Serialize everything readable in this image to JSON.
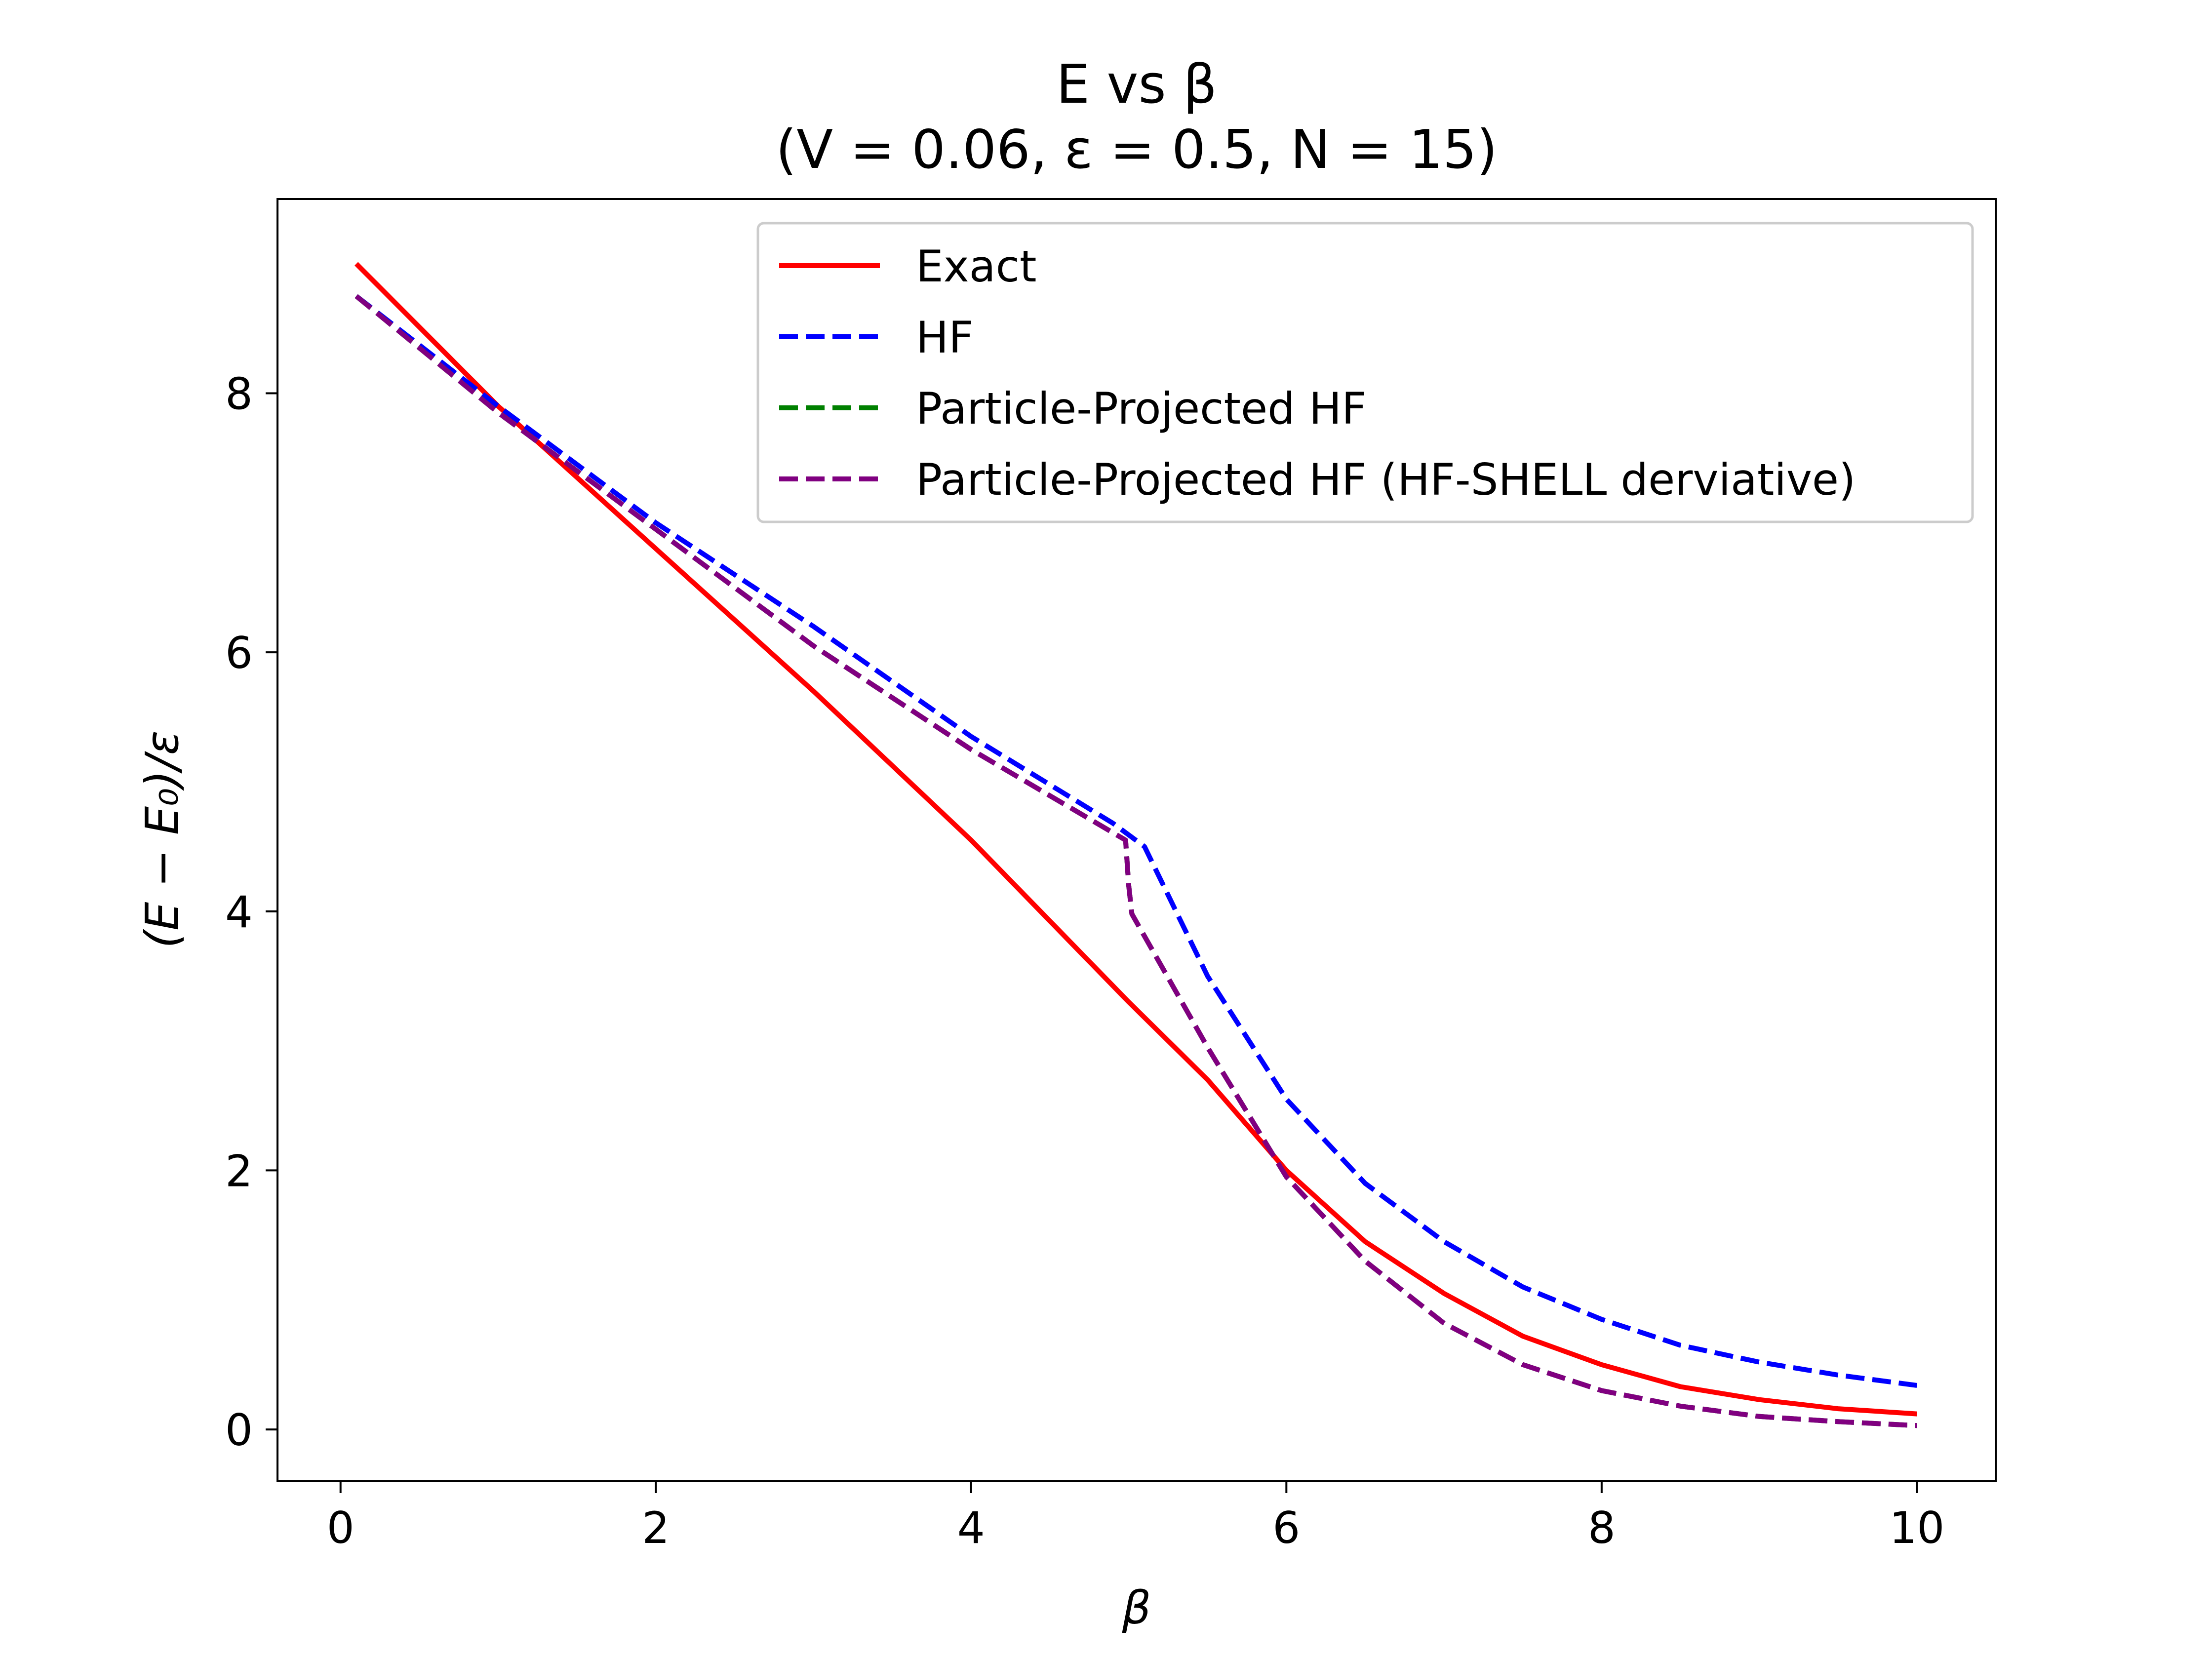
{
  "chart_data": {
    "type": "line",
    "title_line1": "E vs β",
    "title_line2": "(V = 0.06, ε = 0.5, N = 15)",
    "xlabel": "β",
    "ylabel": "(E − E₀)/ε",
    "xlim": [
      -0.4,
      10.5
    ],
    "ylim": [
      -0.4,
      9.5
    ],
    "xticks": [
      0,
      2,
      4,
      6,
      8,
      10
    ],
    "yticks": [
      0,
      2,
      4,
      6,
      8
    ],
    "grid": false,
    "legend_position": "top-right",
    "series": [
      {
        "name": "Exact",
        "color": "#ff0000",
        "dash": "solid",
        "x": [
          0.1,
          1.0,
          2.0,
          3.0,
          4.0,
          5.0,
          5.5,
          6.0,
          6.5,
          7.0,
          7.5,
          8.0,
          8.5,
          9.0,
          9.5,
          10.0
        ],
        "y": [
          9.0,
          7.9,
          6.8,
          5.7,
          4.55,
          3.3,
          2.7,
          2.0,
          1.45,
          1.05,
          0.72,
          0.5,
          0.33,
          0.23,
          0.16,
          0.12
        ]
      },
      {
        "name": "HF",
        "color": "#0000ff",
        "dash": "dashed",
        "x": [
          0.1,
          1.0,
          2.0,
          3.0,
          4.0,
          4.9,
          5.1,
          5.5,
          6.0,
          6.5,
          7.0,
          7.5,
          8.0,
          8.5,
          9.0,
          9.5,
          10.0
        ],
        "y": [
          8.75,
          7.9,
          7.0,
          6.2,
          5.35,
          4.68,
          4.5,
          3.5,
          2.55,
          1.9,
          1.45,
          1.1,
          0.85,
          0.65,
          0.52,
          0.42,
          0.34
        ]
      },
      {
        "name": "Particle-Projected HF",
        "color": "#008000",
        "dash": "dashed",
        "x": [
          0.1,
          1.0,
          2.0,
          3.0,
          4.0,
          4.98,
          5.0,
          5.02,
          5.5,
          6.0,
          6.5,
          7.0,
          7.5,
          8.0,
          8.5,
          9.0,
          9.5,
          10.0
        ],
        "y": [
          8.75,
          7.85,
          6.95,
          6.05,
          5.25,
          4.55,
          4.2,
          3.98,
          2.95,
          1.95,
          1.3,
          0.82,
          0.5,
          0.3,
          0.18,
          0.1,
          0.06,
          0.03
        ]
      },
      {
        "name": "Particle-Projected HF (HF-SHELL derviative)",
        "color": "#800080",
        "dash": "dashed",
        "x": [
          0.1,
          1.0,
          2.0,
          3.0,
          4.0,
          4.98,
          5.0,
          5.02,
          5.5,
          6.0,
          6.5,
          7.0,
          7.5,
          8.0,
          8.5,
          9.0,
          9.5,
          10.0
        ],
        "y": [
          8.75,
          7.85,
          6.95,
          6.05,
          5.25,
          4.55,
          4.2,
          3.98,
          2.95,
          1.95,
          1.3,
          0.82,
          0.5,
          0.3,
          0.18,
          0.1,
          0.06,
          0.03
        ]
      }
    ]
  }
}
